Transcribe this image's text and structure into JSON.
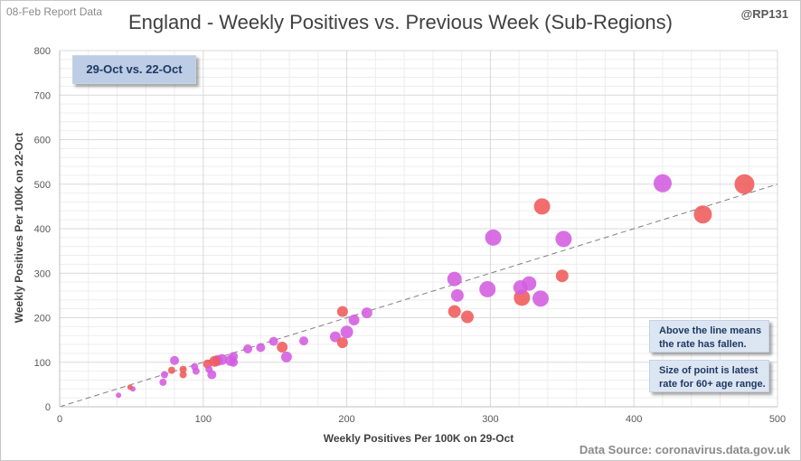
{
  "header": {
    "report_date": "08-Feb Report Data",
    "handle": "@RP131",
    "title": "England - Weekly Positives vs. Previous Week (Sub-Regions)",
    "source": "Data Source: coronavirus.data.gov.uk"
  },
  "annotations": {
    "period": "29-Oct vs. 22-Oct",
    "line_note_1": "Above the line means",
    "line_note_2": "the rate has fallen.",
    "size_note_1": "Size of point is latest",
    "size_note_2": "rate for 60+ age range."
  },
  "colors": {
    "rising": "#f05a5a",
    "falling": "#d35ce0",
    "grid": "#d9d9d9",
    "diagonal": "#7f7f7f"
  },
  "chart_data": {
    "type": "scatter",
    "title": "England - Weekly Positives vs. Previous Week (Sub-Regions)",
    "xlabel": "Weekly Positives Per 100K on 29-Oct",
    "ylabel": "Weekly Positives Per 100K on 22-Oct",
    "xlim": [
      0,
      500
    ],
    "ylim": [
      0,
      800
    ],
    "xticks": [
      0,
      100,
      200,
      300,
      400,
      500
    ],
    "yticks": [
      0,
      100,
      200,
      300,
      400,
      500,
      600,
      700,
      800
    ],
    "grid": true,
    "reference_line": "y = x",
    "points": [
      {
        "x": 477,
        "y": 500,
        "size": 11,
        "color": "rising"
      },
      {
        "x": 420,
        "y": 502,
        "size": 10,
        "color": "falling"
      },
      {
        "x": 448,
        "y": 432,
        "size": 10,
        "color": "rising"
      },
      {
        "x": 336,
        "y": 450,
        "size": 9,
        "color": "rising"
      },
      {
        "x": 351,
        "y": 377,
        "size": 9,
        "color": "falling"
      },
      {
        "x": 302,
        "y": 380,
        "size": 9,
        "color": "falling"
      },
      {
        "x": 350,
        "y": 294,
        "size": 7,
        "color": "rising"
      },
      {
        "x": 275,
        "y": 287,
        "size": 8,
        "color": "falling"
      },
      {
        "x": 327,
        "y": 277,
        "size": 8,
        "color": "falling"
      },
      {
        "x": 321,
        "y": 268,
        "size": 8,
        "color": "falling"
      },
      {
        "x": 298,
        "y": 264,
        "size": 9,
        "color": "falling"
      },
      {
        "x": 277,
        "y": 250,
        "size": 7,
        "color": "falling"
      },
      {
        "x": 335,
        "y": 243,
        "size": 9,
        "color": "falling"
      },
      {
        "x": 322,
        "y": 245,
        "size": 9,
        "color": "rising"
      },
      {
        "x": 275,
        "y": 214,
        "size": 7,
        "color": "rising"
      },
      {
        "x": 284,
        "y": 202,
        "size": 7,
        "color": "rising"
      },
      {
        "x": 214,
        "y": 211,
        "size": 6,
        "color": "falling"
      },
      {
        "x": 197,
        "y": 214,
        "size": 6,
        "color": "rising"
      },
      {
        "x": 205,
        "y": 195,
        "size": 6,
        "color": "falling"
      },
      {
        "x": 200,
        "y": 168,
        "size": 7,
        "color": "falling"
      },
      {
        "x": 192,
        "y": 157,
        "size": 6,
        "color": "falling"
      },
      {
        "x": 197,
        "y": 144,
        "size": 6,
        "color": "rising"
      },
      {
        "x": 170,
        "y": 148,
        "size": 5,
        "color": "falling"
      },
      {
        "x": 155,
        "y": 134,
        "size": 6,
        "color": "rising"
      },
      {
        "x": 149,
        "y": 147,
        "size": 5,
        "color": "falling"
      },
      {
        "x": 140,
        "y": 133,
        "size": 5,
        "color": "falling"
      },
      {
        "x": 131,
        "y": 130,
        "size": 5,
        "color": "falling"
      },
      {
        "x": 158,
        "y": 112,
        "size": 6,
        "color": "falling"
      },
      {
        "x": 121,
        "y": 113,
        "size": 5,
        "color": "falling"
      },
      {
        "x": 119,
        "y": 104,
        "size": 6,
        "color": "falling"
      },
      {
        "x": 113,
        "y": 106,
        "size": 6,
        "color": "falling"
      },
      {
        "x": 110,
        "y": 104,
        "size": 6,
        "color": "falling"
      },
      {
        "x": 108,
        "y": 102,
        "size": 6,
        "color": "rising"
      },
      {
        "x": 121,
        "y": 100,
        "size": 5,
        "color": "falling"
      },
      {
        "x": 103,
        "y": 96,
        "size": 5,
        "color": "rising"
      },
      {
        "x": 104,
        "y": 84,
        "size": 4,
        "color": "falling"
      },
      {
        "x": 106,
        "y": 72,
        "size": 5,
        "color": "falling"
      },
      {
        "x": 94,
        "y": 90,
        "size": 4,
        "color": "falling"
      },
      {
        "x": 95,
        "y": 80,
        "size": 4,
        "color": "falling"
      },
      {
        "x": 86,
        "y": 84,
        "size": 4,
        "color": "rising"
      },
      {
        "x": 86,
        "y": 72,
        "size": 4,
        "color": "rising"
      },
      {
        "x": 80,
        "y": 104,
        "size": 5,
        "color": "falling"
      },
      {
        "x": 78,
        "y": 82,
        "size": 4,
        "color": "rising"
      },
      {
        "x": 73,
        "y": 72,
        "size": 4,
        "color": "falling"
      },
      {
        "x": 72,
        "y": 55,
        "size": 4,
        "color": "falling"
      },
      {
        "x": 51,
        "y": 40,
        "size": 3,
        "color": "falling"
      },
      {
        "x": 49,
        "y": 44,
        "size": 3,
        "color": "rising"
      },
      {
        "x": 41,
        "y": 26,
        "size": 3,
        "color": "falling"
      }
    ]
  }
}
